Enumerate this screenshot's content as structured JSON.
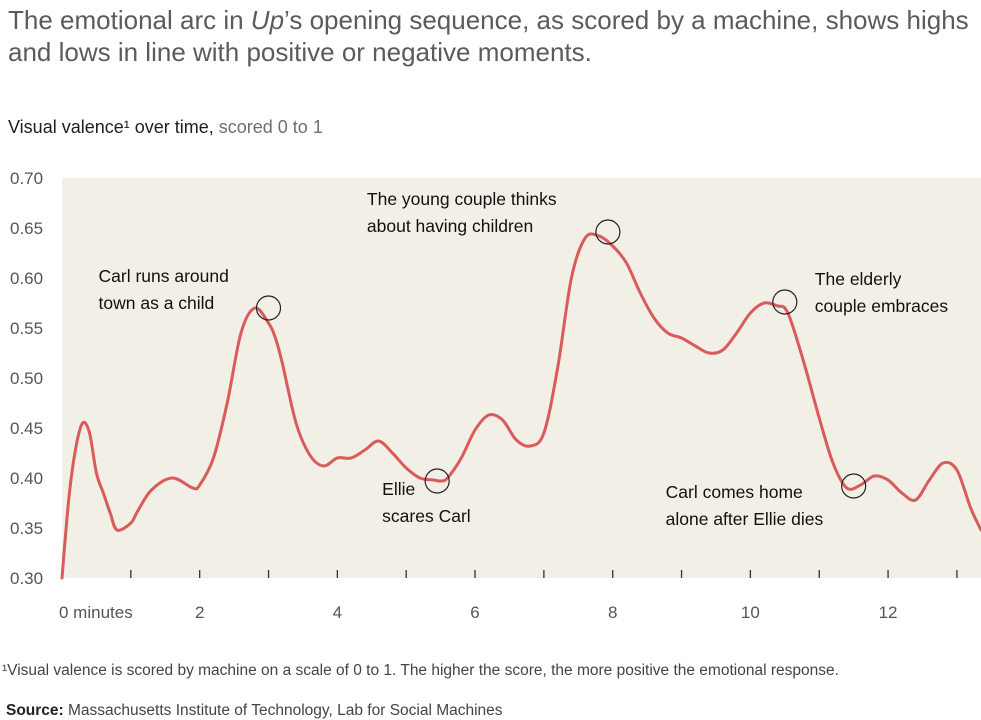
{
  "headline": {
    "part1": "The emotional arc in ",
    "italic": "Up",
    "part2": "’s opening sequence, as scored by a machine, shows highs and lows in line with positive or negative moments."
  },
  "subtitle": {
    "bold": "Visual valence¹ over time,",
    "light": " scored 0 to 1"
  },
  "chart_data": {
    "type": "line",
    "title": "",
    "xlabel": "",
    "ylabel": "Visual valence",
    "xlim": [
      0,
      13.35
    ],
    "ylim": [
      0.3,
      0.7
    ],
    "grid": false,
    "y_ticks": [
      "0.70",
      "0.65",
      "0.60",
      "0.55",
      "0.50",
      "0.45",
      "0.40",
      "0.35",
      "0.30"
    ],
    "x_ticks": [
      {
        "value": 0,
        "label": "0 minutes"
      },
      {
        "value": 1,
        "label": ""
      },
      {
        "value": 2,
        "label": "2"
      },
      {
        "value": 3,
        "label": ""
      },
      {
        "value": 4,
        "label": "4"
      },
      {
        "value": 5,
        "label": ""
      },
      {
        "value": 6,
        "label": "6"
      },
      {
        "value": 7,
        "label": ""
      },
      {
        "value": 8,
        "label": "8"
      },
      {
        "value": 9,
        "label": ""
      },
      {
        "value": 10,
        "label": "10"
      },
      {
        "value": 11,
        "label": ""
      },
      {
        "value": 12,
        "label": "12"
      },
      {
        "value": 13,
        "label": ""
      }
    ],
    "series": [
      {
        "color": "#d95b5b",
        "x": [
          0,
          0.1,
          0.2,
          0.3,
          0.4,
          0.5,
          0.6,
          0.7,
          0.8,
          1.0,
          1.1,
          1.3,
          1.6,
          1.9,
          2.0,
          2.2,
          2.4,
          2.6,
          2.8,
          3.0,
          3.1,
          3.2,
          3.4,
          3.6,
          3.8,
          4.0,
          4.2,
          4.4,
          4.6,
          4.8,
          5.0,
          5.2,
          5.4,
          5.5,
          5.6,
          5.8,
          6.0,
          6.2,
          6.4,
          6.6,
          6.8,
          7.0,
          7.2,
          7.4,
          7.6,
          7.8,
          8.0,
          8.2,
          8.4,
          8.6,
          8.8,
          9.0,
          9.2,
          9.4,
          9.6,
          9.8,
          10.0,
          10.2,
          10.4,
          10.5,
          10.6,
          10.8,
          11.0,
          11.2,
          11.4,
          11.6,
          11.8,
          12.0,
          12.2,
          12.4,
          12.6,
          12.8,
          13.0,
          13.2,
          13.35
        ],
        "y": [
          0.3,
          0.38,
          0.43,
          0.455,
          0.445,
          0.405,
          0.385,
          0.365,
          0.348,
          0.355,
          0.367,
          0.388,
          0.4,
          0.39,
          0.393,
          0.42,
          0.475,
          0.545,
          0.57,
          0.555,
          0.54,
          0.515,
          0.455,
          0.423,
          0.412,
          0.42,
          0.42,
          0.428,
          0.437,
          0.425,
          0.41,
          0.4,
          0.398,
          0.397,
          0.4,
          0.42,
          0.448,
          0.463,
          0.458,
          0.438,
          0.432,
          0.445,
          0.51,
          0.6,
          0.64,
          0.642,
          0.632,
          0.615,
          0.585,
          0.56,
          0.545,
          0.54,
          0.532,
          0.525,
          0.528,
          0.545,
          0.565,
          0.575,
          0.572,
          0.57,
          0.555,
          0.51,
          0.46,
          0.415,
          0.39,
          0.393,
          0.402,
          0.398,
          0.385,
          0.378,
          0.398,
          0.415,
          0.408,
          0.37,
          0.348
        ]
      }
    ],
    "annotations": [
      {
        "x": 3.0,
        "y": 0.57,
        "lines": [
          "Carl runs around",
          "town as a child"
        ],
        "anchor": "left"
      },
      {
        "x": 7.93,
        "y": 0.646,
        "lines": [
          "The young couple thinks",
          "about having children"
        ],
        "anchor": "top"
      },
      {
        "x": 10.5,
        "y": 0.576,
        "lines": [
          "The elderly",
          "couple embraces"
        ],
        "anchor": "right"
      },
      {
        "x": 5.45,
        "y": 0.397,
        "lines": [
          "Ellie",
          "scares Carl"
        ],
        "anchor": "bottom"
      },
      {
        "x": 11.5,
        "y": 0.392,
        "lines": [
          "Carl comes home",
          "alone after Ellie dies"
        ],
        "anchor": "bottom-left"
      }
    ]
  },
  "footnote": "¹Visual valence is scored by machine on a scale of 0 to 1. The higher the score, the more positive the emotional response.",
  "source": {
    "label": "Source:",
    "text": " Massachusetts Institute of Technology, Lab for Social Machines"
  }
}
